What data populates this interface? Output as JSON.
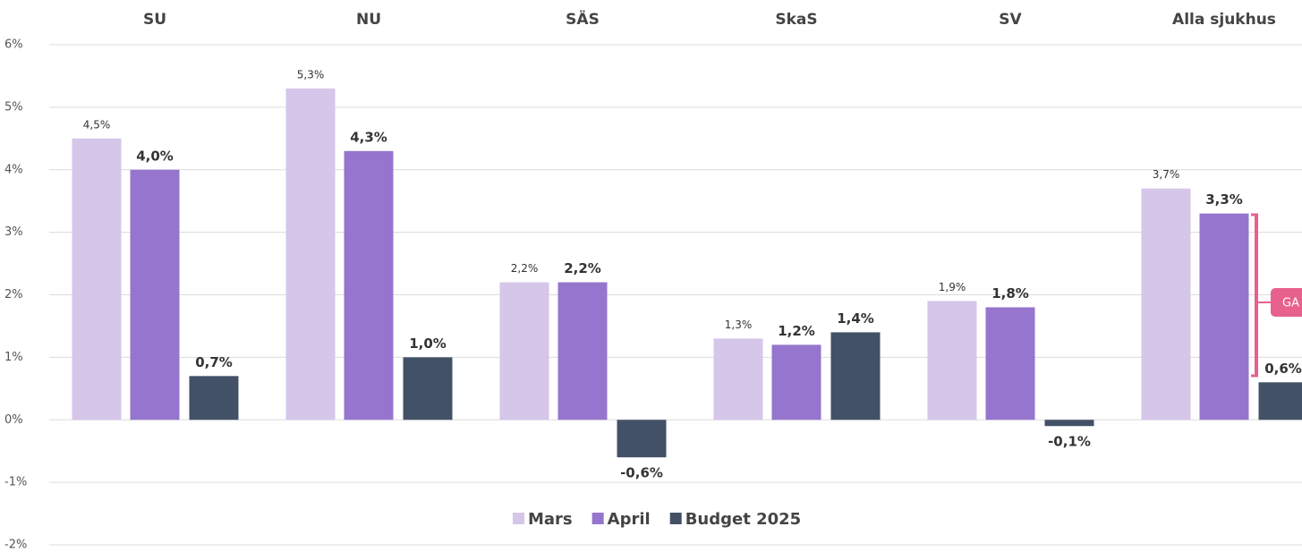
{
  "chart_data": {
    "type": "bar",
    "categories": [
      "SU",
      "NU",
      "SÄS",
      "SkaS",
      "SV",
      "Alla sjukhus"
    ],
    "series": [
      {
        "name": "Mars",
        "color": "#d5c6ea",
        "values": [
          4.5,
          5.3,
          2.2,
          1.3,
          1.9,
          3.7
        ],
        "value_labels": [
          "4,5%",
          "5,3%",
          "2,2%",
          "1,3%",
          "1,9%",
          "3,7%"
        ]
      },
      {
        "name": "April",
        "color": "#9575cd",
        "values": [
          4.0,
          4.3,
          2.2,
          1.2,
          1.8,
          3.3
        ],
        "value_labels": [
          "4,0%",
          "4,3%",
          "2,2%",
          "1,2%",
          "1,8%",
          "3,3%"
        ]
      },
      {
        "name": "Budget 2025",
        "color": "#435167",
        "values": [
          0.7,
          1.0,
          -0.6,
          1.4,
          -0.1,
          0.6
        ],
        "value_labels": [
          "0,7%",
          "1,0%",
          "-0,6%",
          "1,4%",
          "-0,1%",
          "0,6%"
        ]
      }
    ],
    "ylim": [
      -2,
      6
    ],
    "yticks": [
      {
        "value": -2,
        "label": "-2%"
      },
      {
        "value": -1,
        "label": "-1%"
      },
      {
        "value": 0,
        "label": "0%"
      },
      {
        "value": 1,
        "label": "1%"
      },
      {
        "value": 2,
        "label": "2%"
      },
      {
        "value": 3,
        "label": "3%"
      },
      {
        "value": 4,
        "label": "4%"
      },
      {
        "value": 5,
        "label": "5%"
      },
      {
        "value": 6,
        "label": "6%"
      }
    ],
    "grid": true,
    "legend": "bottom",
    "annotation": "GA"
  }
}
